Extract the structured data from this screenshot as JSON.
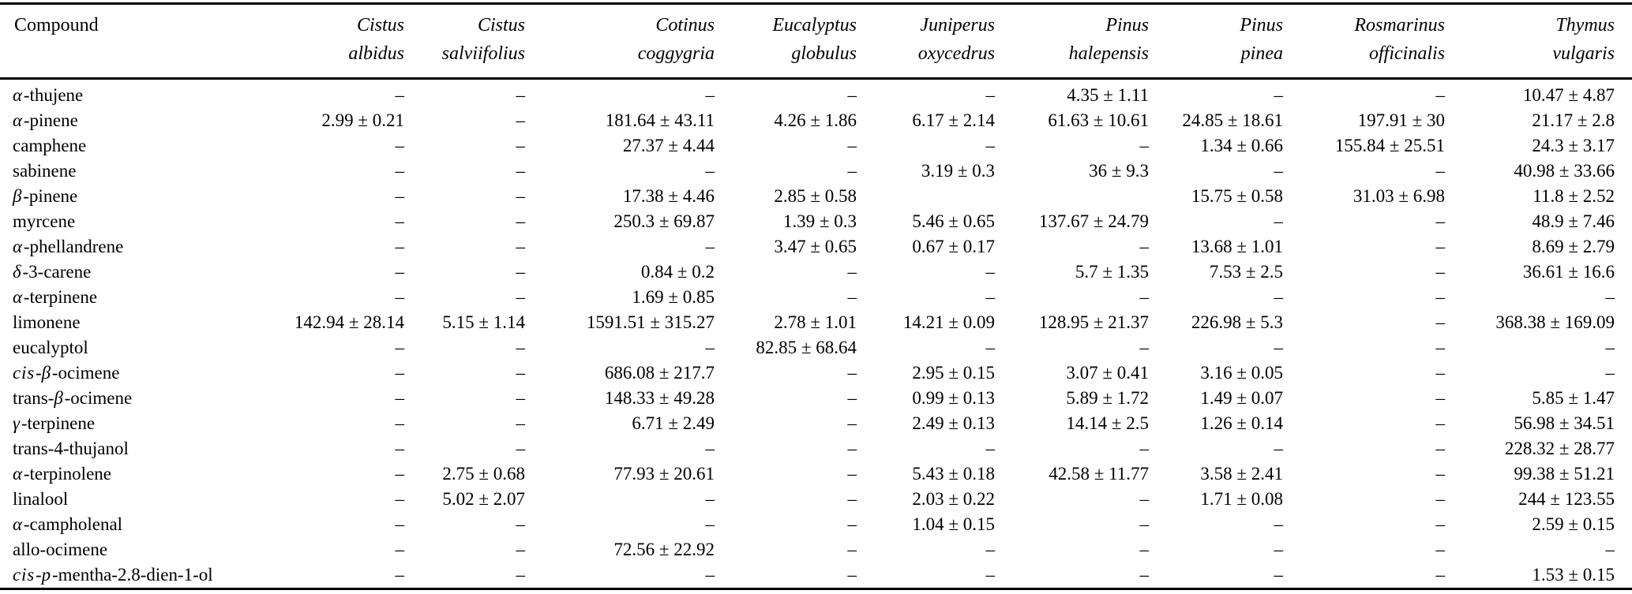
{
  "table": {
    "dash": "–",
    "columns": [
      {
        "key": "compound",
        "line1": "Compound",
        "line2": "",
        "italic": false
      },
      {
        "key": "cistus-albidus",
        "line1": "Cistus",
        "line2": "albidus",
        "italic": true
      },
      {
        "key": "cistus-salviifolius",
        "line1": "Cistus",
        "line2": "salviifolius",
        "italic": true
      },
      {
        "key": "cotinus-coggygria",
        "line1": "Cotinus",
        "line2": "coggygria",
        "italic": true
      },
      {
        "key": "eucalyptus-globulus",
        "line1": "Eucalyptus",
        "line2": "globulus",
        "italic": true
      },
      {
        "key": "juniperus-oxycedrus",
        "line1": "Juniperus",
        "line2": "oxycedrus",
        "italic": true
      },
      {
        "key": "pinus-halepensis",
        "line1": "Pinus",
        "line2": "halepensis",
        "italic": true
      },
      {
        "key": "pinus-pinea",
        "line1": "Pinus",
        "line2": "pinea",
        "italic": true
      },
      {
        "key": "rosmarinus-officinalis",
        "line1": "Rosmarinus",
        "line2": "officinalis",
        "italic": true
      },
      {
        "key": "thymus-vulgaris",
        "line1": "Thymus",
        "line2": "vulgaris",
        "italic": true
      }
    ],
    "rows": [
      {
        "compound": [
          {
            "t": "α",
            "i": true
          },
          {
            "t": "-thujene",
            "i": false
          }
        ],
        "values": [
          "–",
          "–",
          "–",
          "–",
          "–",
          "4.35 ± 1.11",
          "–",
          "–",
          "10.47 ± 4.87"
        ]
      },
      {
        "compound": [
          {
            "t": "α",
            "i": true
          },
          {
            "t": "-pinene",
            "i": false
          }
        ],
        "values": [
          "2.99 ± 0.21",
          "–",
          "181.64 ± 43.11",
          "4.26 ± 1.86",
          "6.17 ± 2.14",
          "61.63 ± 10.61",
          "24.85 ± 18.61",
          "197.91 ± 30",
          "21.17 ± 2.8"
        ]
      },
      {
        "compound": [
          {
            "t": "camphene",
            "i": false
          }
        ],
        "values": [
          "–",
          "–",
          "27.37 ± 4.44",
          "–",
          "–",
          "–",
          "1.34 ± 0.66",
          "155.84 ± 25.51",
          "24.3 ± 3.17"
        ]
      },
      {
        "compound": [
          {
            "t": "sabinene",
            "i": false
          }
        ],
        "values": [
          "–",
          "–",
          "–",
          "–",
          "3.19 ± 0.3",
          "36 ± 9.3",
          "–",
          "–",
          "40.98 ± 33.66"
        ]
      },
      {
        "compound": [
          {
            "t": "β",
            "i": true
          },
          {
            "t": "-pinene",
            "i": false
          }
        ],
        "values": [
          "–",
          "–",
          "17.38 ± 4.46",
          "2.85 ± 0.58",
          "",
          "",
          "15.75 ± 0.58",
          "31.03 ± 6.98",
          "11.8 ± 2.52"
        ]
      },
      {
        "compound": [
          {
            "t": "myrcene",
            "i": false
          }
        ],
        "values": [
          "–",
          "–",
          "250.3 ± 69.87",
          "1.39 ± 0.3",
          "5.46 ± 0.65",
          "137.67 ± 24.79",
          "–",
          "–",
          "48.9 ± 7.46"
        ]
      },
      {
        "compound": [
          {
            "t": "α",
            "i": true
          },
          {
            "t": "-phellandrene",
            "i": false
          }
        ],
        "values": [
          "–",
          "–",
          "–",
          "3.47 ± 0.65",
          "0.67 ± 0.17",
          "–",
          "13.68 ± 1.01",
          "–",
          "8.69 ± 2.79"
        ]
      },
      {
        "compound": [
          {
            "t": "δ",
            "i": true
          },
          {
            "t": "-3-carene",
            "i": false
          }
        ],
        "values": [
          "–",
          "–",
          "0.84 ± 0.2",
          "–",
          "–",
          "5.7 ± 1.35",
          "7.53 ± 2.5",
          "–",
          "36.61 ± 16.6"
        ]
      },
      {
        "compound": [
          {
            "t": "α",
            "i": true
          },
          {
            "t": "-terpinene",
            "i": false
          }
        ],
        "values": [
          "–",
          "–",
          "1.69 ± 0.85",
          "–",
          "–",
          "–",
          "–",
          "–",
          "–"
        ]
      },
      {
        "compound": [
          {
            "t": "limonene",
            "i": false
          }
        ],
        "values": [
          "142.94 ± 28.14",
          "5.15 ± 1.14",
          "1591.51 ± 315.27",
          "2.78 ± 1.01",
          "14.21 ± 0.09",
          "128.95 ± 21.37",
          "226.98 ± 5.3",
          "–",
          "368.38 ± 169.09"
        ]
      },
      {
        "compound": [
          {
            "t": "eucalyptol",
            "i": false
          }
        ],
        "values": [
          "–",
          "–",
          "–",
          "82.85 ± 68.64",
          "–",
          "–",
          "–",
          "–",
          "–"
        ]
      },
      {
        "compound": [
          {
            "t": "cis",
            "i": true
          },
          {
            "t": "-",
            "i": false
          },
          {
            "t": "β",
            "i": true
          },
          {
            "t": "-ocimene",
            "i": false
          }
        ],
        "values": [
          "–",
          "–",
          "686.08 ± 217.7",
          "–",
          "2.95 ± 0.15",
          "3.07 ± 0.41",
          "3.16 ± 0.05",
          "–",
          "–"
        ]
      },
      {
        "compound": [
          {
            "t": "trans-",
            "i": false
          },
          {
            "t": "β",
            "i": true
          },
          {
            "t": "-ocimene",
            "i": false
          }
        ],
        "values": [
          "–",
          "–",
          "148.33 ± 49.28",
          "–",
          "0.99 ± 0.13",
          "5.89 ± 1.72",
          "1.49 ± 0.07",
          "–",
          "5.85 ± 1.47"
        ]
      },
      {
        "compound": [
          {
            "t": "γ",
            "i": true
          },
          {
            "t": "-terpinene",
            "i": false
          }
        ],
        "values": [
          "–",
          "–",
          "6.71 ± 2.49",
          "–",
          "2.49 ± 0.13",
          "14.14 ± 2.5",
          "1.26 ± 0.14",
          "–",
          "56.98 ± 34.51"
        ]
      },
      {
        "compound": [
          {
            "t": "trans-4-thujanol",
            "i": false
          }
        ],
        "values": [
          "–",
          "–",
          "–",
          "–",
          "–",
          "–",
          "–",
          "–",
          "228.32 ± 28.77"
        ]
      },
      {
        "compound": [
          {
            "t": "α",
            "i": true
          },
          {
            "t": "-terpinolene",
            "i": false
          }
        ],
        "values": [
          "–",
          "2.75 ± 0.68",
          "77.93 ± 20.61",
          "–",
          "5.43 ± 0.18",
          "42.58 ± 11.77",
          "3.58 ± 2.41",
          "–",
          "99.38 ± 51.21"
        ]
      },
      {
        "compound": [
          {
            "t": "linalool",
            "i": false
          }
        ],
        "values": [
          "–",
          "5.02 ± 2.07",
          "–",
          "–",
          "2.03 ± 0.22",
          "–",
          "1.71 ± 0.08",
          "–",
          "244 ± 123.55"
        ]
      },
      {
        "compound": [
          {
            "t": "α",
            "i": true
          },
          {
            "t": "-campholenal",
            "i": false
          }
        ],
        "values": [
          "–",
          "–",
          "–",
          "–",
          "1.04 ± 0.15",
          "–",
          "–",
          "–",
          "2.59 ± 0.15"
        ]
      },
      {
        "compound": [
          {
            "t": "allo-ocimene",
            "i": false
          }
        ],
        "values": [
          "–",
          "–",
          "72.56 ± 22.92",
          "–",
          "–",
          "–",
          "–",
          "–",
          "–"
        ]
      },
      {
        "compound": [
          {
            "t": "cis",
            "i": true
          },
          {
            "t": "-",
            "i": false
          },
          {
            "t": "p",
            "i": true
          },
          {
            "t": "-mentha-2.8-dien-1-ol",
            "i": false
          }
        ],
        "values": [
          "–",
          "–",
          "–",
          "–",
          "–",
          "–",
          "–",
          "–",
          "1.53 ± 0.15"
        ]
      }
    ]
  }
}
